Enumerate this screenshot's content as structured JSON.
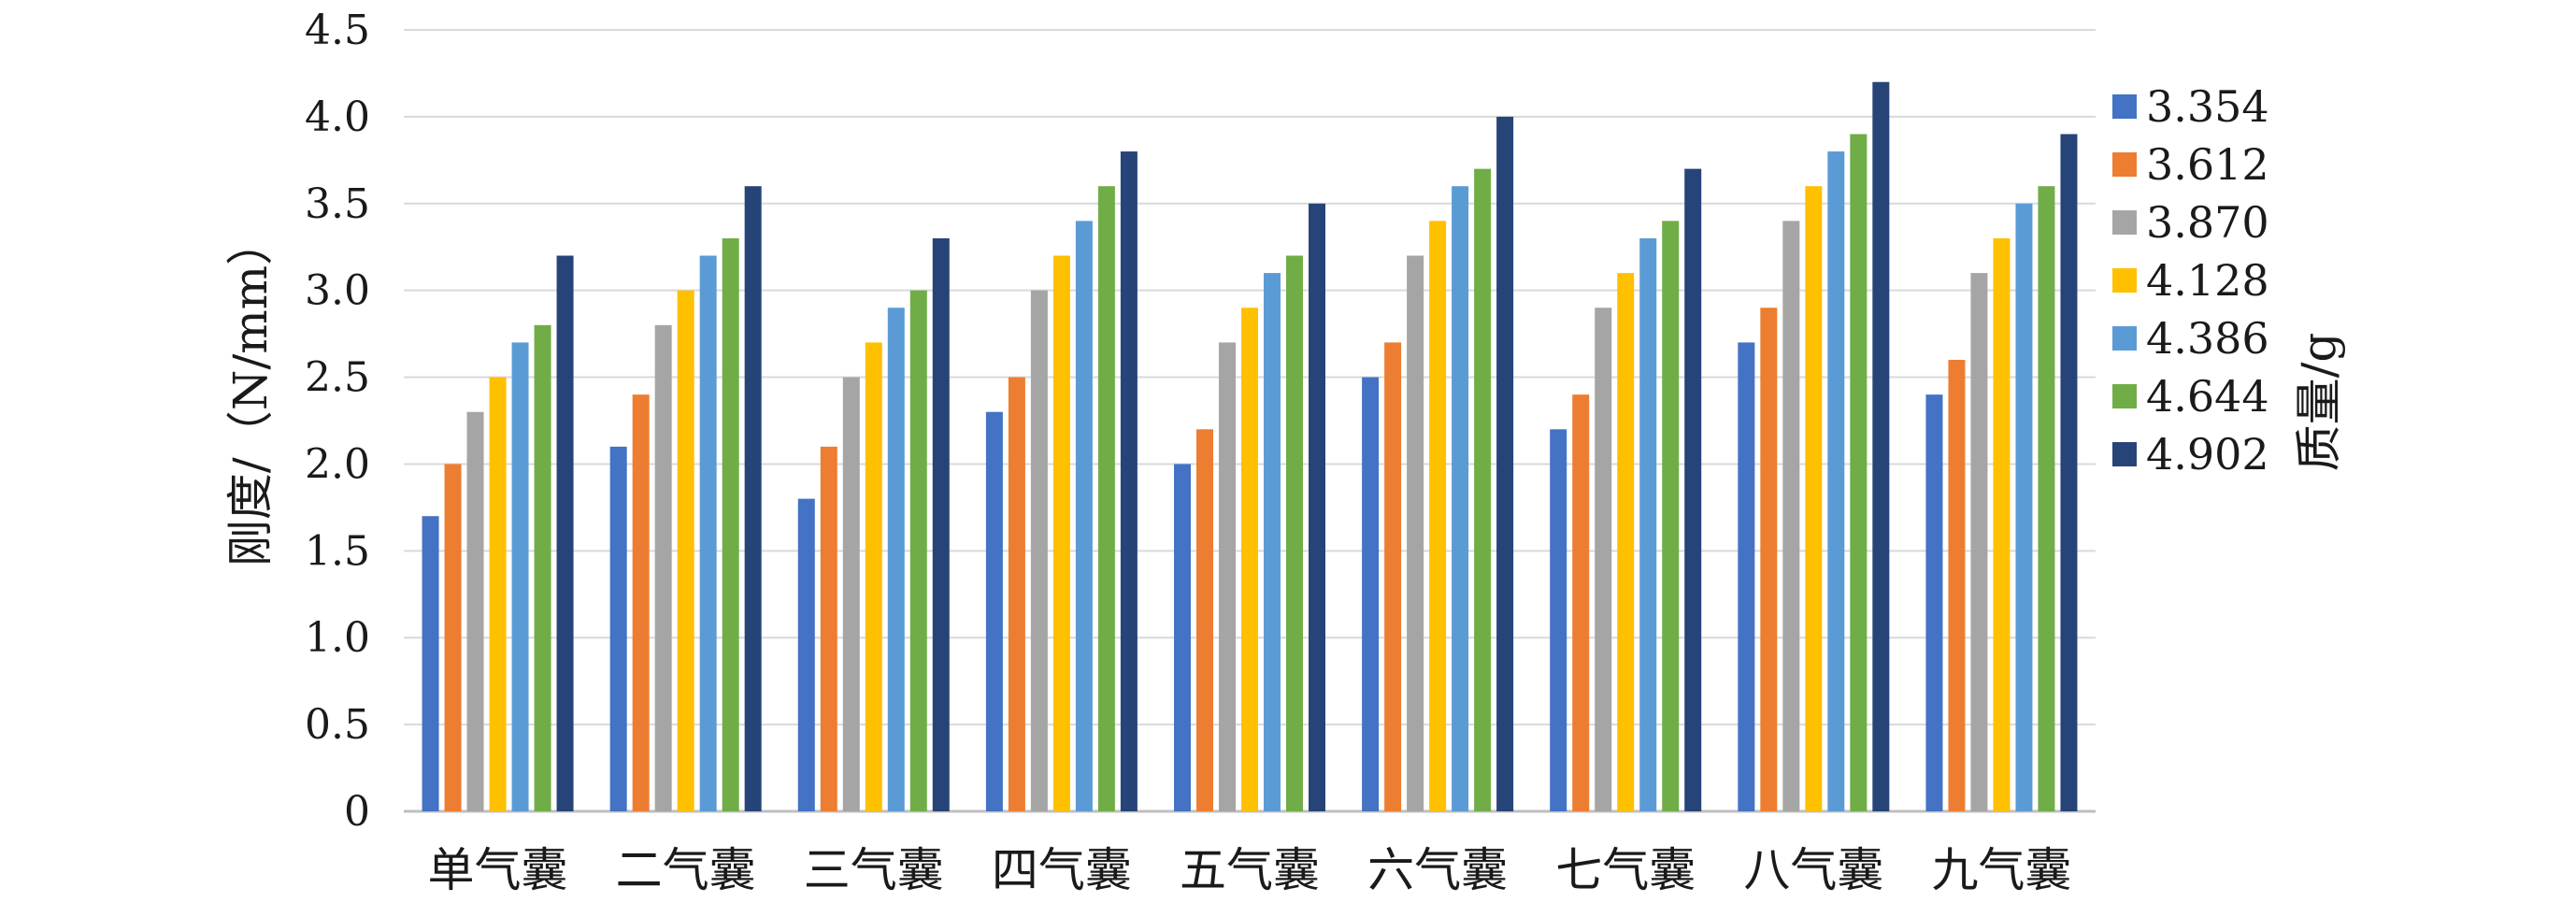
{
  "chart_data": {
    "type": "bar",
    "categories": [
      "单气囊",
      "二气囊",
      "三气囊",
      "四气囊",
      "五气囊",
      "六气囊",
      "七气囊",
      "八气囊",
      "九气囊"
    ],
    "series": [
      {
        "name": "3.354",
        "color": "#4472c4",
        "values": [
          1.7,
          2.1,
          1.8,
          2.3,
          2.0,
          2.5,
          2.2,
          2.7,
          2.4
        ]
      },
      {
        "name": "3.612",
        "color": "#ed7d31",
        "values": [
          2.0,
          2.4,
          2.1,
          2.5,
          2.2,
          2.7,
          2.4,
          2.9,
          2.6
        ]
      },
      {
        "name": "3.870",
        "color": "#a5a5a5",
        "values": [
          2.3,
          2.8,
          2.5,
          3.0,
          2.7,
          3.2,
          2.9,
          3.4,
          3.1
        ]
      },
      {
        "name": "4.128",
        "color": "#ffc000",
        "values": [
          2.5,
          3.0,
          2.7,
          3.2,
          2.9,
          3.4,
          3.1,
          3.6,
          3.3
        ]
      },
      {
        "name": "4.386",
        "color": "#5b9bd5",
        "values": [
          2.7,
          3.2,
          2.9,
          3.4,
          3.1,
          3.6,
          3.3,
          3.8,
          3.5
        ]
      },
      {
        "name": "4.644",
        "color": "#70ad47",
        "values": [
          2.8,
          3.3,
          3.0,
          3.6,
          3.2,
          3.7,
          3.4,
          3.9,
          3.6
        ]
      },
      {
        "name": "4.902",
        "color": "#264478",
        "values": [
          3.2,
          3.6,
          3.3,
          3.8,
          3.5,
          4.0,
          3.7,
          4.2,
          3.9
        ]
      }
    ],
    "yticks": [
      "0",
      "0.5",
      "1.0",
      "1.5",
      "2.0",
      "2.5",
      "3.0",
      "3.5",
      "4.0",
      "4.5"
    ],
    "ylim": [
      0,
      4.5
    ],
    "ylabel": "刚度/（N/mm）",
    "legend_title": "质量/g",
    "legend_position": "right",
    "grid": true
  }
}
